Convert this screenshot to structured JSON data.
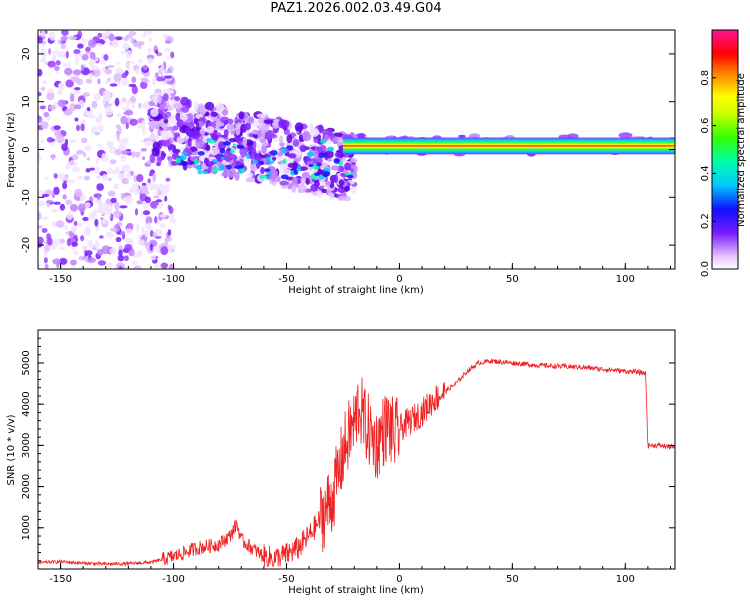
{
  "title": "PAZ1.2026.002.03.49.G04",
  "chart_data": [
    {
      "type": "heatmap",
      "title": "PAZ1.2026.002.03.49.G04",
      "xlabel": "Height of straight line (km)",
      "ylabel": "Frequency (Hz)",
      "xlim": [
        -160,
        122
      ],
      "ylim": [
        -25,
        25
      ],
      "xticks": [
        -150,
        -100,
        -50,
        0,
        50,
        100
      ],
      "yticks": [
        -20,
        -10,
        0,
        10,
        20
      ],
      "colorbar": {
        "label": "Normalized spectral amplitude",
        "range": [
          0,
          1
        ],
        "ticks": [
          "0.0",
          "0.2",
          "0.4",
          "0.6",
          "0.8"
        ]
      },
      "description_points": [
        {
          "x_range": [
            -160,
            -100
          ],
          "freq_spread": [
            -25,
            25
          ],
          "level": 0.15
        },
        {
          "x_range": [
            -100,
            -25
          ],
          "freq_spread": [
            -15,
            10
          ],
          "level": 0.25
        },
        {
          "x_range": [
            -25,
            122
          ],
          "freq_center": 1,
          "level": 0.9
        }
      ]
    },
    {
      "type": "line",
      "xlabel": "Height of straight line (km)",
      "ylabel": "SNR (10 * v/v)",
      "xlim": [
        -160,
        122
      ],
      "ylim": [
        0,
        5800
      ],
      "xticks": [
        -150,
        -100,
        -50,
        0,
        50,
        100
      ],
      "yticks": [
        1000,
        2000,
        3000,
        4000,
        5000
      ],
      "series": [
        {
          "name": "SNR",
          "color": "#ee2222",
          "x": [
            -160,
            -150,
            -140,
            -130,
            -120,
            -110,
            -100,
            -95,
            -90,
            -85,
            -80,
            -75,
            -72,
            -70,
            -65,
            -60,
            -55,
            -50,
            -45,
            -40,
            -35,
            -30,
            -27,
            -25,
            -22,
            -20,
            -18,
            -15,
            -12,
            -10,
            -8,
            -5,
            -2,
            0,
            5,
            10,
            15,
            20,
            25,
            30,
            35,
            40,
            50,
            60,
            70,
            80,
            90,
            100,
            105,
            109,
            110,
            115,
            122
          ],
          "y": [
            150,
            180,
            140,
            120,
            130,
            160,
            300,
            400,
            500,
            550,
            600,
            800,
            1100,
            700,
            500,
            300,
            250,
            350,
            500,
            800,
            1200,
            1700,
            2300,
            2800,
            3300,
            3500,
            4000,
            3500,
            3200,
            3000,
            3300,
            3500,
            3200,
            3400,
            3600,
            3800,
            4100,
            4300,
            4500,
            4800,
            5000,
            5050,
            5000,
            4950,
            4920,
            4900,
            4850,
            4800,
            4780,
            4750,
            3000,
            3000,
            2950
          ]
        }
      ]
    }
  ]
}
